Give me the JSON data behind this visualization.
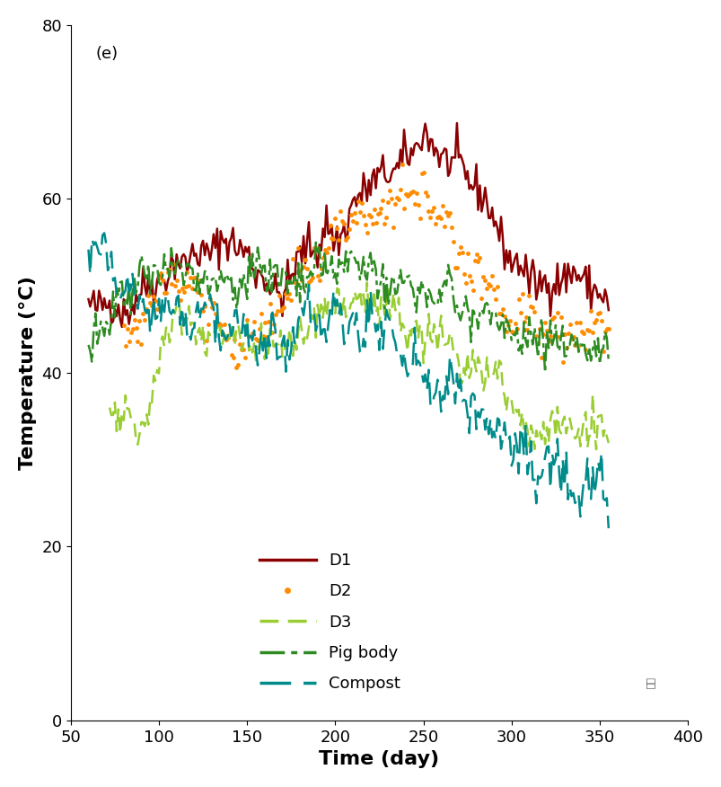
{
  "title_label": "(e)",
  "xlabel": "Time (day)",
  "ylabel": "Temperature (°C)",
  "xlim": [
    50,
    400
  ],
  "ylim": [
    0,
    80
  ],
  "xticks": [
    50,
    100,
    150,
    200,
    250,
    300,
    350,
    400
  ],
  "yticks": [
    0,
    20,
    40,
    60,
    80
  ],
  "bg_color": "#ffffff",
  "colors": {
    "D1": "#8B0000",
    "D2": "#FF8C00",
    "D3": "#9ACD32",
    "Pig_body": "#2E8B22",
    "Compost": "#008B8B"
  },
  "noise_std": 1.2,
  "D1_trend": {
    "x_start": 60,
    "x_end": 355,
    "step": 1,
    "knots_x": [
      60,
      80,
      100,
      120,
      140,
      160,
      170,
      180,
      200,
      220,
      240,
      250,
      255,
      265,
      280,
      300,
      320,
      340,
      355
    ],
    "knots_y": [
      47,
      47.5,
      50.5,
      53.5,
      54.5,
      50.5,
      48.5,
      53.5,
      56,
      61,
      65,
      67,
      66.5,
      64.5,
      62,
      53,
      51,
      50,
      49
    ]
  },
  "D2_trend": {
    "x_start": 80,
    "x_end": 355,
    "step": 1,
    "knots_x": [
      80,
      90,
      100,
      110,
      120,
      140,
      155,
      165,
      175,
      190,
      210,
      230,
      245,
      255,
      265,
      275,
      290,
      310,
      330,
      355
    ],
    "knots_y": [
      44,
      45,
      50,
      51,
      49,
      43,
      43,
      46,
      50,
      53.5,
      57,
      59,
      61,
      60,
      57,
      53,
      48.5,
      46,
      44.5,
      44
    ]
  },
  "D3_trend": {
    "x_start": 72,
    "x_end": 355,
    "step": 1,
    "knots_x": [
      72,
      80,
      88,
      95,
      100,
      110,
      130,
      150,
      170,
      185,
      200,
      215,
      230,
      245,
      260,
      275,
      290,
      310,
      330,
      355
    ],
    "knots_y": [
      36,
      35,
      34,
      36,
      43,
      47,
      44,
      43.5,
      44,
      44.5,
      47.5,
      48.5,
      47,
      45,
      43,
      41,
      39.5,
      33.5,
      33,
      33
    ]
  },
  "Pig_body_trend": {
    "x_start": 60,
    "x_end": 355,
    "step": 1,
    "knots_x": [
      60,
      75,
      90,
      105,
      120,
      140,
      160,
      180,
      195,
      210,
      225,
      240,
      255,
      270,
      285,
      300,
      320,
      340,
      355
    ],
    "knots_y": [
      43.5,
      47,
      50.5,
      52,
      51,
      50.5,
      52,
      51.5,
      53,
      52,
      51,
      50,
      49,
      48,
      46.5,
      45,
      44,
      43.5,
      43
    ]
  },
  "Compost_trend": {
    "x_start": 60,
    "x_end": 355,
    "step": 1,
    "knots_x": [
      60,
      70,
      80,
      100,
      120,
      140,
      160,
      175,
      190,
      210,
      225,
      240,
      255,
      265,
      275,
      285,
      295,
      305,
      320,
      340,
      355
    ],
    "knots_y": [
      55,
      53.5,
      51.5,
      47.5,
      46,
      44.5,
      43.5,
      43.5,
      47,
      46,
      44,
      42,
      40,
      38.5,
      37,
      35,
      33.5,
      31,
      29,
      27,
      26
    ]
  }
}
